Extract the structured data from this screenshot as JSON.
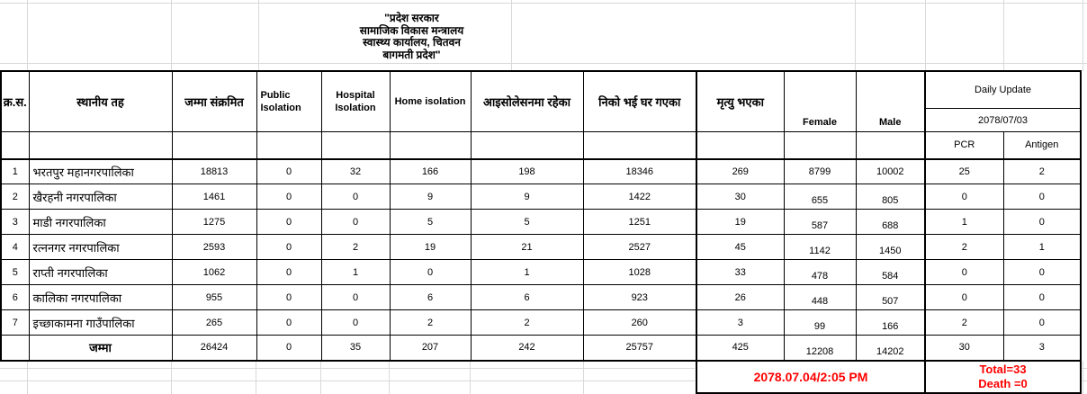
{
  "title": {
    "lines": [
      "\"प्रदेश सरकार",
      "सामाजिक विकास मन्त्रालय",
      "स्वास्थ्य कार्यालय, चितवन",
      "बागमती प्रदेश\""
    ]
  },
  "table": {
    "headers": {
      "sn": "क्र.स.",
      "local_level": "स्थानीय तह",
      "total_infected": "जम्मा संक्रमित",
      "public_isolation": "Public Isolation",
      "hospital_isolation": "Hospital Isolation",
      "home_isolation": "Home isolation",
      "in_isolation": "आइसोलेसनमा रहेका",
      "recovered": "निको भई घर गएका",
      "deaths": "मृत्यु भएका",
      "female": "Female",
      "male": "Male",
      "daily_update": "Daily Update",
      "daily_update_date": "2078/07/03",
      "pcr": "PCR",
      "antigen": "Antigen"
    },
    "rows": [
      {
        "sn": "1",
        "name": "भरतपुर महानगरपालिका",
        "values": [
          "18813",
          "0",
          "32",
          "166",
          "198",
          "18346",
          "269",
          "8799",
          "10002",
          "25",
          "2"
        ]
      },
      {
        "sn": "2",
        "name": "खैरहनी नगरपालिका",
        "values": [
          "1461",
          "0",
          "0",
          "9",
          "9",
          "1422",
          "30",
          "655",
          "805",
          "0",
          "0"
        ]
      },
      {
        "sn": "3",
        "name": "माडी नगरपालिका",
        "values": [
          "1275",
          "0",
          "0",
          "5",
          "5",
          "1251",
          "19",
          "587",
          "688",
          "1",
          "0"
        ]
      },
      {
        "sn": "4",
        "name": "रत्ननगर नगरपालिका",
        "values": [
          "2593",
          "0",
          "2",
          "19",
          "21",
          "2527",
          "45",
          "1142",
          "1450",
          "2",
          "1"
        ]
      },
      {
        "sn": "5",
        "name": "राप्ती नगरपालिका",
        "values": [
          "1062",
          "0",
          "1",
          "0",
          "1",
          "1028",
          "33",
          "478",
          "584",
          "0",
          "0"
        ]
      },
      {
        "sn": "6",
        "name": "कालिका नगरपालिका",
        "values": [
          "955",
          "0",
          "0",
          "6",
          "6",
          "923",
          "26",
          "448",
          "507",
          "0",
          "0"
        ]
      },
      {
        "sn": "7",
        "name": "इच्छाकामना गाउँपालिका",
        "values": [
          "265",
          "0",
          "0",
          "2",
          "2",
          "260",
          "3",
          "99",
          "166",
          "2",
          "0"
        ]
      }
    ],
    "total_row": {
      "label": "जम्मा",
      "values": [
        "26424",
        "0",
        "35",
        "207",
        "242",
        "25757",
        "425",
        "12208",
        "14202",
        "30",
        "3"
      ]
    }
  },
  "footer": {
    "timestamp": "2078.07.04/2:05 PM",
    "total_line": "Total=33",
    "death_line": "Death =0"
  },
  "colors": {
    "accent_red": "#FF0000",
    "border_black": "#000000",
    "gridline_gray": "#D9D9D9"
  }
}
